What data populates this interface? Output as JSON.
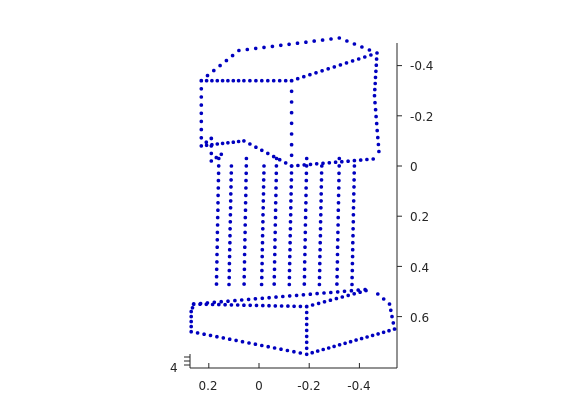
{
  "chart_data": {
    "type": "scatter",
    "title": "",
    "xlabel": "",
    "ylabel": "",
    "zlabel": "",
    "grid": false,
    "marker_color": "#0000bf",
    "marker": "dot",
    "y_axis_ticks": [
      "-0.4",
      "-0.2",
      "0",
      "0.2",
      "0.4",
      "0.6"
    ],
    "x_axis_ticks": [
      "0.2",
      "0",
      "-0.2",
      "-0.4"
    ],
    "z_axis_ticks": [
      "4"
    ],
    "ylim": [
      -0.5,
      0.7
    ],
    "xlim": [
      0.27,
      -0.54
    ],
    "shape": "3d point cloud of a column with a block capital on top and a slab base",
    "capital": {
      "front_face": [
        [
          0.23,
          -0.34
        ],
        [
          0.06,
          -0.34
        ],
        [
          -0.13,
          -0.34
        ],
        [
          -0.13,
          0.0
        ],
        [
          0.06,
          -0.1
        ],
        [
          0.23,
          -0.08
        ]
      ],
      "top_far_corner": [
        -0.32,
        -0.51
      ],
      "top_right_corner": [
        -0.47,
        -0.45
      ]
    },
    "columns_x": [
      0.16,
      0.11,
      0.05,
      -0.02,
      -0.07,
      -0.13,
      -0.19,
      -0.25,
      -0.32,
      -0.38
    ],
    "column_top_y": 0.0,
    "column_bottom_y": 0.5,
    "base": {
      "front_left": [
        0.26,
        0.55
      ],
      "front_right": [
        -0.19,
        0.56
      ],
      "bottom_left": [
        0.27,
        0.66
      ],
      "bottom_front": [
        -0.19,
        0.75
      ],
      "bottom_right": [
        -0.54,
        0.65
      ],
      "back_right": [
        -0.45,
        0.49
      ]
    }
  }
}
